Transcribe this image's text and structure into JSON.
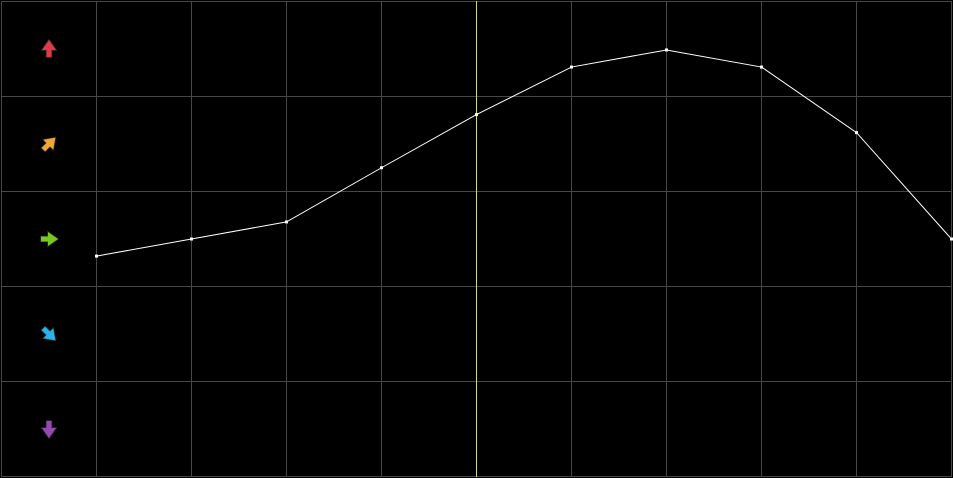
{
  "chart_data": {
    "type": "line",
    "x": [
      1,
      2,
      3,
      4,
      5,
      6,
      7,
      8,
      9,
      10
    ],
    "series": [
      {
        "values": [
          2.32,
          2.5,
          2.68,
          3.25,
          3.81,
          4.31,
          4.49,
          4.31,
          3.62,
          2.5
        ],
        "color": "#ffffff"
      }
    ],
    "ylim": [
      0,
      5
    ],
    "xlim": [
      1,
      10
    ],
    "grid": true,
    "highlight_x": 5,
    "highlight_color": "#d8d870",
    "grid_color": "#474747",
    "background": "#000000",
    "row_icons": [
      {
        "name": "arrow-up-icon",
        "color": "#e03a48",
        "angle": 0
      },
      {
        "name": "arrow-up-right-icon",
        "color": "#f0a535",
        "angle": 45
      },
      {
        "name": "arrow-right-icon",
        "color": "#78c820",
        "angle": 90
      },
      {
        "name": "arrow-down-right-icon",
        "color": "#28b4e8",
        "angle": 135
      },
      {
        "name": "arrow-down-icon",
        "color": "#9648b4",
        "angle": 180
      }
    ]
  }
}
